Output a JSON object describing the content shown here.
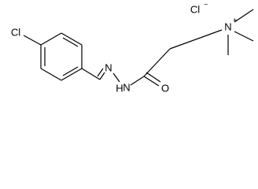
{
  "atoms": [
    {
      "label": "Cl"
    },
    {
      "label": "N"
    },
    {
      "label": "H"
    },
    {
      "label": "N"
    },
    {
      "label": "O"
    },
    {
      "label": "Cl",
      "charge": "−"
    },
    {
      "label": "N",
      "charge": "+"
    }
  ]
}
